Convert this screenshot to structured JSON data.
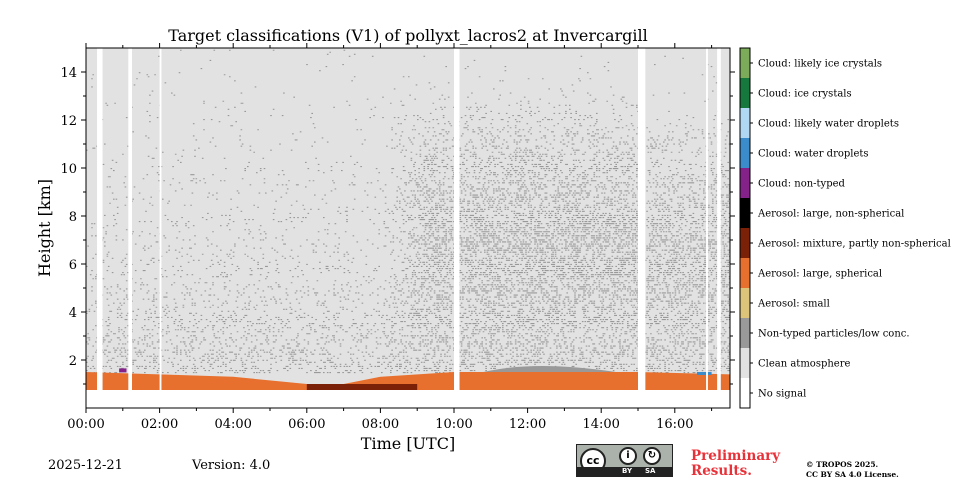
{
  "chart_data": {
    "type": "heatmap",
    "title": "Target classifications (V1) of pollyxt_lacros2 at Invercargill",
    "xlabel": "Time [UTC]",
    "ylabel": "Height [km]",
    "xlim": [
      0,
      17.5
    ],
    "ylim": [
      0,
      15
    ],
    "x_ticks": [
      0,
      2,
      4,
      6,
      8,
      10,
      12,
      14,
      16
    ],
    "x_tick_labels": [
      "00:00",
      "02:00",
      "04:00",
      "06:00",
      "08:00",
      "10:00",
      "12:00",
      "14:00",
      "16:00"
    ],
    "y_ticks": [
      2,
      4,
      6,
      8,
      10,
      12,
      14
    ],
    "y_tick_labels": [
      "2",
      "4",
      "6",
      "8",
      "10",
      "12",
      "14"
    ],
    "classes": [
      {
        "label": "No signal",
        "color": "#ffffff"
      },
      {
        "label": "Clean atmosphere",
        "color": "#e2e2e2"
      },
      {
        "label": "Non-typed particles/low conc.",
        "color": "#999999"
      },
      {
        "label": "Aerosol: small",
        "color": "#dcc57a"
      },
      {
        "label": "Aerosol: large, spherical",
        "color": "#e8702e"
      },
      {
        "label": "Aerosol: mixture, partly non-spherical",
        "color": "#7a2108"
      },
      {
        "label": "Aerosol: large, non-spherical",
        "color": "#000000"
      },
      {
        "label": "Cloud: non-typed",
        "color": "#842289"
      },
      {
        "label": "Cloud: water droplets",
        "color": "#3a8ccb"
      },
      {
        "label": "Cloud: likely water droplets",
        "color": "#b0d8f2"
      },
      {
        "label": "Cloud: ice crystals",
        "color": "#16783d"
      },
      {
        "label": "Cloud: likely ice crystals",
        "color": "#7cab5a"
      }
    ],
    "data_gaps_hours": [
      [
        0.3,
        0.45
      ],
      [
        1.15,
        1.25
      ],
      [
        2.0,
        2.05
      ],
      [
        10.0,
        10.15
      ],
      [
        15.0,
        15.2
      ],
      [
        16.85,
        16.9
      ],
      [
        17.15,
        17.25
      ]
    ],
    "aerosol_layer_top_km": [
      {
        "t": 0.0,
        "km": 1.5
      },
      {
        "t": 2.0,
        "km": 1.4
      },
      {
        "t": 4.0,
        "km": 1.3
      },
      {
        "t": 6.0,
        "km": 1.0
      },
      {
        "t": 7.0,
        "km": 1.0
      },
      {
        "t": 8.0,
        "km": 1.3
      },
      {
        "t": 10.0,
        "km": 1.5
      },
      {
        "t": 12.0,
        "km": 1.5
      },
      {
        "t": 14.0,
        "km": 1.5
      },
      {
        "t": 15.0,
        "km": 1.5
      },
      {
        "t": 17.5,
        "km": 1.4
      }
    ],
    "colorbar_position": "right"
  },
  "footer": {
    "date": "2025-12-21",
    "version": "Version: 4.0",
    "preliminary_line1": "Preliminary",
    "preliminary_line2": "Results.",
    "copyright_line1": "© TROPOS 2025.",
    "copyright_line2": "CC BY SA 4.0 License.",
    "cc_by_label": "BY",
    "cc_sa_label": "SA"
  }
}
